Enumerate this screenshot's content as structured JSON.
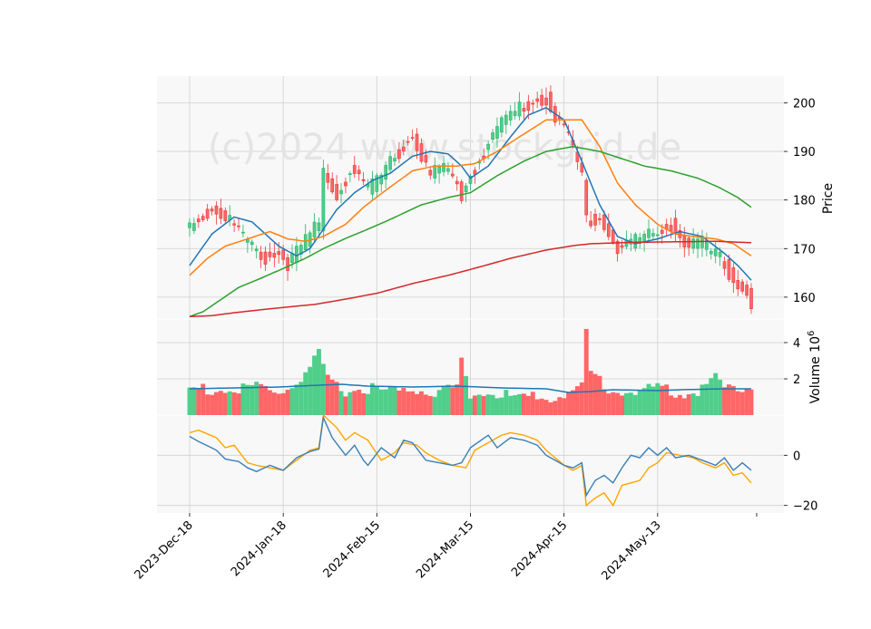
{
  "watermark": "(c)2024 www.stockgrid.de",
  "price_panel": {
    "ylabel": "Price",
    "yticks": [
      160,
      170,
      180,
      190,
      200
    ],
    "ylim": [
      155.5,
      205.5
    ]
  },
  "volume_panel": {
    "ylabel": "Volume  10",
    "exponent": "6",
    "yticks": [
      2,
      4
    ],
    "ylim": [
      0,
      5.3
    ]
  },
  "osc_panel": {
    "yticks": [
      0,
      -20
    ],
    "ylim": [
      -23,
      16
    ]
  },
  "x_axis": {
    "ticks": [
      "2023-Dec-18",
      "2024-Jan-18",
      "2024-Feb-15",
      "2024-Mar-15",
      "2024-Apr-15",
      "2024-May-13"
    ],
    "tick_index": [
      0,
      21,
      42,
      63,
      84,
      105
    ]
  },
  "colors": {
    "up": "#26b36a",
    "up_fill": "#4fcf8a",
    "down": "#e83a3a",
    "down_fill": "#ff6666",
    "ma_blue": "#1f77b4",
    "ma_orange": "#ff7f0e",
    "ma_green": "#2ca02c",
    "ma_red": "#d62728",
    "osc_blue": "#3a7fb5",
    "osc_orange": "#ffa500",
    "panel_bg": "#f8f8f8",
    "grid": "#d0d0d0"
  },
  "chart_data": {
    "type": "candlestick",
    "n": 127,
    "price_anchors": [
      [
        0,
        175
      ],
      [
        5,
        178
      ],
      [
        9,
        176
      ],
      [
        14,
        170
      ],
      [
        17,
        168
      ],
      [
        20,
        169
      ],
      [
        22,
        167
      ],
      [
        24,
        169
      ],
      [
        27,
        173
      ],
      [
        29,
        175
      ],
      [
        30,
        186
      ],
      [
        33,
        181
      ],
      [
        36,
        186
      ],
      [
        38,
        185
      ],
      [
        40,
        182
      ],
      [
        43,
        185
      ],
      [
        46,
        189
      ],
      [
        50,
        193
      ],
      [
        54,
        185
      ],
      [
        57,
        187
      ],
      [
        61,
        181
      ],
      [
        63,
        185
      ],
      [
        66,
        190
      ],
      [
        70,
        196
      ],
      [
        74,
        199
      ],
      [
        80,
        201
      ],
      [
        82,
        197
      ],
      [
        85,
        193
      ],
      [
        88,
        185
      ],
      [
        89,
        176
      ],
      [
        92,
        176
      ],
      [
        96,
        170
      ],
      [
        100,
        172
      ],
      [
        105,
        173
      ],
      [
        108,
        175
      ],
      [
        111,
        171
      ],
      [
        115,
        171
      ],
      [
        120,
        167
      ],
      [
        122,
        163
      ],
      [
        125,
        161
      ],
      [
        126,
        158
      ]
    ],
    "ma_anchors": {
      "ma10": [
        [
          0,
          166.5
        ],
        [
          5,
          173
        ],
        [
          10,
          176.5
        ],
        [
          14,
          175.5
        ],
        [
          17,
          173
        ],
        [
          20,
          170.5
        ],
        [
          24,
          168.5
        ],
        [
          27,
          170
        ],
        [
          30,
          174
        ],
        [
          33,
          178
        ],
        [
          37,
          181.5
        ],
        [
          41,
          184
        ],
        [
          45,
          185.5
        ],
        [
          50,
          189
        ],
        [
          54,
          190
        ],
        [
          58,
          189.5
        ],
        [
          61,
          187
        ],
        [
          63,
          184.5
        ],
        [
          67,
          187
        ],
        [
          72,
          193
        ],
        [
          76,
          197.5
        ],
        [
          80,
          199
        ],
        [
          84,
          196.5
        ],
        [
          88,
          188
        ],
        [
          92,
          179
        ],
        [
          96,
          172.5
        ],
        [
          100,
          171
        ],
        [
          105,
          172
        ],
        [
          110,
          173.5
        ],
        [
          115,
          172.5
        ],
        [
          120,
          169
        ],
        [
          123,
          166.5
        ],
        [
          126,
          163.5
        ]
      ],
      "ma20": [
        [
          0,
          164.5
        ],
        [
          4,
          168
        ],
        [
          8,
          170.5
        ],
        [
          13,
          172
        ],
        [
          18,
          173.5
        ],
        [
          22,
          172
        ],
        [
          26,
          171.5
        ],
        [
          30,
          172.5
        ],
        [
          35,
          175
        ],
        [
          39,
          178.5
        ],
        [
          44,
          182
        ],
        [
          50,
          186
        ],
        [
          55,
          187
        ],
        [
          60,
          187
        ],
        [
          64,
          187.5
        ],
        [
          69,
          190
        ],
        [
          74,
          193
        ],
        [
          80,
          196.5
        ],
        [
          88,
          196.5
        ],
        [
          92,
          191
        ],
        [
          96,
          183.5
        ],
        [
          100,
          179
        ],
        [
          105,
          175
        ],
        [
          109,
          173
        ],
        [
          113,
          172.5
        ],
        [
          118,
          172
        ],
        [
          122,
          171
        ],
        [
          126,
          168.5
        ]
      ],
      "ma50": [
        [
          0,
          156
        ],
        [
          3,
          157
        ],
        [
          7,
          159.5
        ],
        [
          11,
          162
        ],
        [
          15,
          163.5
        ],
        [
          20,
          165.5
        ],
        [
          26,
          168
        ],
        [
          30,
          170
        ],
        [
          36,
          172.5
        ],
        [
          40,
          174
        ],
        [
          45,
          176
        ],
        [
          52,
          179
        ],
        [
          58,
          180.5
        ],
        [
          63,
          181.5
        ],
        [
          69,
          185
        ],
        [
          75,
          188
        ],
        [
          80,
          190
        ],
        [
          86,
          191
        ],
        [
          92,
          190
        ],
        [
          97,
          188.5
        ],
        [
          102,
          187
        ],
        [
          108,
          186
        ],
        [
          114,
          184.5
        ],
        [
          119,
          182.5
        ],
        [
          123,
          180.5
        ],
        [
          126,
          178.5
        ]
      ],
      "ma200": [
        [
          0,
          156
        ],
        [
          5,
          156.2
        ],
        [
          10,
          156.8
        ],
        [
          20,
          157.8
        ],
        [
          28,
          158.5
        ],
        [
          35,
          159.6
        ],
        [
          42,
          160.8
        ],
        [
          50,
          162.8
        ],
        [
          58,
          164.5
        ],
        [
          65,
          166.2
        ],
        [
          72,
          168
        ],
        [
          80,
          169.7
        ],
        [
          86,
          170.6
        ],
        [
          90,
          171
        ],
        [
          100,
          171.3
        ],
        [
          110,
          171.4
        ],
        [
          118,
          171.5
        ],
        [
          126,
          171.2
        ]
      ]
    },
    "volume_anchors": [
      [
        0,
        1.5
      ],
      [
        10,
        1.3
      ],
      [
        15,
        1.6
      ],
      [
        20,
        1.2
      ],
      [
        25,
        1.9
      ],
      [
        29,
        3.3
      ],
      [
        31,
        1.9
      ],
      [
        35,
        1.3
      ],
      [
        40,
        1.5
      ],
      [
        45,
        1.3
      ],
      [
        52,
        1.4
      ],
      [
        55,
        1.2
      ],
      [
        60,
        1.6
      ],
      [
        61,
        3.1
      ],
      [
        63,
        1.2
      ],
      [
        70,
        1.1
      ],
      [
        80,
        0.9
      ],
      [
        88,
        1.5
      ],
      [
        89,
        4.7
      ],
      [
        90,
        2.3
      ],
      [
        94,
        1.5
      ],
      [
        96,
        1.4
      ],
      [
        101,
        1.2
      ],
      [
        105,
        1.6
      ],
      [
        110,
        1.2
      ],
      [
        115,
        1.4
      ],
      [
        118,
        2.2
      ],
      [
        120,
        1.5
      ],
      [
        126,
        1.5
      ]
    ],
    "volume_ma_anchors": [
      [
        0,
        1.45
      ],
      [
        10,
        1.5
      ],
      [
        20,
        1.55
      ],
      [
        29,
        1.65
      ],
      [
        34,
        1.7
      ],
      [
        40,
        1.6
      ],
      [
        50,
        1.55
      ],
      [
        60,
        1.6
      ],
      [
        70,
        1.5
      ],
      [
        80,
        1.45
      ],
      [
        85,
        1.25
      ],
      [
        90,
        1.3
      ],
      [
        95,
        1.4
      ],
      [
        105,
        1.35
      ],
      [
        110,
        1.4
      ],
      [
        120,
        1.45
      ],
      [
        126,
        1.45
      ]
    ],
    "osc_anchors": {
      "blue": [
        [
          0,
          7.5
        ],
        [
          2,
          5.5
        ],
        [
          6,
          2
        ],
        [
          8,
          -1.5
        ],
        [
          11,
          -2.5
        ],
        [
          13,
          -5
        ],
        [
          15,
          -6.5
        ],
        [
          18,
          -4
        ],
        [
          21,
          -6
        ],
        [
          24,
          -1
        ],
        [
          27,
          1.5
        ],
        [
          29,
          2.5
        ],
        [
          30,
          15
        ],
        [
          32,
          7
        ],
        [
          35,
          0
        ],
        [
          37,
          4
        ],
        [
          39,
          -2
        ],
        [
          40,
          -4
        ],
        [
          43,
          3
        ],
        [
          46,
          -1
        ],
        [
          48,
          6
        ],
        [
          50,
          5
        ],
        [
          53,
          -2
        ],
        [
          56,
          -3
        ],
        [
          59,
          -4
        ],
        [
          61,
          -3
        ],
        [
          63,
          3
        ],
        [
          67,
          8
        ],
        [
          69,
          3
        ],
        [
          72,
          7
        ],
        [
          75,
          6
        ],
        [
          78,
          4
        ],
        [
          80,
          0
        ],
        [
          84,
          -4
        ],
        [
          86,
          -5
        ],
        [
          88,
          -3
        ],
        [
          89,
          -16
        ],
        [
          91,
          -10
        ],
        [
          93,
          -8
        ],
        [
          95,
          -11
        ],
        [
          97,
          -5
        ],
        [
          99,
          0
        ],
        [
          101,
          -1
        ],
        [
          103,
          3
        ],
        [
          105,
          0
        ],
        [
          107,
          3
        ],
        [
          109,
          -1
        ],
        [
          112,
          0
        ],
        [
          115,
          -2
        ],
        [
          118,
          -4
        ],
        [
          120,
          -1
        ],
        [
          122,
          -6
        ],
        [
          124,
          -3
        ],
        [
          126,
          -6
        ]
      ],
      "orange": [
        [
          0,
          9
        ],
        [
          2,
          10
        ],
        [
          6,
          7
        ],
        [
          8,
          3
        ],
        [
          10,
          4
        ],
        [
          13,
          -3
        ],
        [
          15,
          -4
        ],
        [
          18,
          -5
        ],
        [
          21,
          -6
        ],
        [
          24,
          -2
        ],
        [
          27,
          2
        ],
        [
          29,
          3
        ],
        [
          30,
          16
        ],
        [
          33,
          11
        ],
        [
          35,
          6
        ],
        [
          37,
          9
        ],
        [
          40,
          6
        ],
        [
          43,
          -2
        ],
        [
          46,
          1
        ],
        [
          48,
          5
        ],
        [
          51,
          4
        ],
        [
          53,
          1
        ],
        [
          56,
          -2
        ],
        [
          59,
          -4
        ],
        [
          62,
          -5
        ],
        [
          64,
          2
        ],
        [
          68,
          6
        ],
        [
          70,
          8
        ],
        [
          72,
          9
        ],
        [
          75,
          8
        ],
        [
          78,
          6
        ],
        [
          80,
          2
        ],
        [
          84,
          -4
        ],
        [
          86,
          -6
        ],
        [
          88,
          -4
        ],
        [
          89,
          -20
        ],
        [
          91,
          -17
        ],
        [
          93,
          -15
        ],
        [
          95,
          -20
        ],
        [
          97,
          -12
        ],
        [
          99,
          -11
        ],
        [
          101,
          -10
        ],
        [
          103,
          -5
        ],
        [
          105,
          -3
        ],
        [
          107,
          1
        ],
        [
          110,
          0
        ],
        [
          113,
          -1
        ],
        [
          115,
          -3
        ],
        [
          118,
          -5
        ],
        [
          120,
          -3
        ],
        [
          122,
          -8
        ],
        [
          124,
          -7
        ],
        [
          126,
          -11
        ]
      ]
    }
  }
}
